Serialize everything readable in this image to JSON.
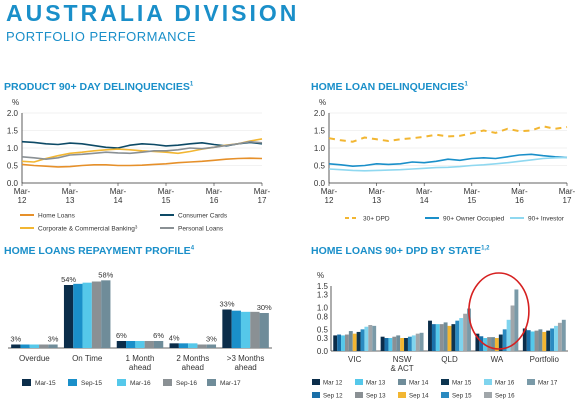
{
  "header": {
    "title": "AUSTRALIA DIVISION",
    "subtitle": "PORTFOLIO PERFORMANCE"
  },
  "colors": {
    "teal_dark": "#0d4a66",
    "dark_navy": "#0b2d4a",
    "light_blue": "#55c8ea",
    "mid_blue": "#4aa0d0",
    "grey": "#8a9094",
    "gold": "#f2b632",
    "orange": "#e6902a",
    "navy2": "#1c5f86",
    "slate": "#6b98ad",
    "grey_blue": "#6f8c99",
    "annotation_red": "#d62020"
  },
  "chart_data": [
    {
      "id": "product_delinquencies",
      "type": "line",
      "title": "PRODUCT 90+ DAY DELINQUENCIES",
      "title_sup": "1",
      "ylabel": "%",
      "ylim": [
        0,
        2.0
      ],
      "yticks": [
        "0.0",
        "0.5",
        "1.0",
        "1.5",
        "2.0"
      ],
      "x_ticks": [
        [
          "Mar-",
          "12"
        ],
        [
          "Mar-",
          "13"
        ],
        [
          "Mar-",
          "14"
        ],
        [
          "Mar-",
          "15"
        ],
        [
          "Mar-",
          "16"
        ],
        [
          "Mar-",
          "17"
        ]
      ],
      "x_range": [
        0,
        20
      ],
      "series": [
        {
          "name": "Home Loans",
          "color": "#e6902a",
          "values": [
            0.53,
            0.5,
            0.48,
            0.46,
            0.47,
            0.5,
            0.52,
            0.52,
            0.5,
            0.5,
            0.51,
            0.53,
            0.55,
            0.58,
            0.6,
            0.62,
            0.65,
            0.68,
            0.7,
            0.71,
            0.7
          ]
        },
        {
          "name": "Consumer Cards",
          "color": "#0d4a66",
          "values": [
            1.18,
            1.16,
            1.12,
            1.1,
            1.14,
            1.12,
            1.07,
            1.02,
            1.0,
            1.08,
            1.12,
            1.1,
            1.06,
            1.08,
            1.12,
            1.15,
            1.1,
            1.06,
            1.12,
            1.16,
            1.12
          ]
        },
        {
          "name": "Corporate & Commercial Banking",
          "name_sup": "3",
          "color": "#f2b632",
          "values": [
            0.62,
            0.6,
            0.7,
            0.78,
            0.85,
            0.88,
            0.92,
            0.95,
            0.97,
            0.95,
            0.92,
            0.9,
            0.88,
            0.85,
            0.9,
            0.97,
            1.02,
            1.08,
            1.12,
            1.2,
            1.26
          ]
        },
        {
          "name": "Personal Loans",
          "color": "#8a9094",
          "values": [
            0.75,
            0.72,
            0.68,
            0.72,
            0.8,
            0.82,
            0.85,
            0.88,
            0.86,
            0.85,
            0.88,
            0.92,
            0.92,
            0.95,
            1.0,
            0.98,
            1.02,
            1.07,
            1.12,
            1.18,
            1.15
          ]
        }
      ]
    },
    {
      "id": "home_loan_delinquencies",
      "type": "line",
      "title": "HOME LOAN DELINQUENCIES",
      "title_sup": "1",
      "ylabel": "%",
      "ylim": [
        0,
        2.0
      ],
      "yticks": [
        "0.0",
        "0.5",
        "1.0",
        "1.5",
        "2.0"
      ],
      "x_ticks": [
        [
          "Mar-",
          "12"
        ],
        [
          "Mar-",
          "13"
        ],
        [
          "Mar-",
          "14"
        ],
        [
          "Mar-",
          "15"
        ],
        [
          "Mar-",
          "16"
        ],
        [
          "Mar-",
          "17"
        ]
      ],
      "x_range": [
        0,
        20
      ],
      "series": [
        {
          "name": "30+ DPD",
          "color": "#f2b632",
          "dashed": true,
          "values": [
            1.28,
            1.22,
            1.18,
            1.3,
            1.25,
            1.2,
            1.25,
            1.28,
            1.32,
            1.38,
            1.33,
            1.35,
            1.42,
            1.5,
            1.43,
            1.55,
            1.48,
            1.5,
            1.62,
            1.55,
            1.6
          ]
        },
        {
          "name": "90+ Owner Occupied",
          "color": "#1a8fc9",
          "values": [
            0.55,
            0.52,
            0.48,
            0.5,
            0.55,
            0.53,
            0.55,
            0.6,
            0.58,
            0.62,
            0.68,
            0.65,
            0.7,
            0.72,
            0.7,
            0.75,
            0.8,
            0.82,
            0.78,
            0.75,
            0.73
          ]
        },
        {
          "name": "90+ Investor",
          "color": "#8fd8f0",
          "values": [
            0.4,
            0.38,
            0.36,
            0.35,
            0.36,
            0.37,
            0.38,
            0.4,
            0.42,
            0.44,
            0.45,
            0.47,
            0.5,
            0.52,
            0.55,
            0.58,
            0.62,
            0.66,
            0.7,
            0.72,
            0.73
          ]
        }
      ]
    },
    {
      "id": "repayment_profile",
      "type": "bar",
      "title": "HOME LOANS REPAYMENT PROFILE",
      "title_sup": "4",
      "categories": [
        [
          "Overdue"
        ],
        [
          "On Time"
        ],
        [
          "1 Month",
          "ahead"
        ],
        [
          "2 Months",
          "ahead"
        ],
        [
          ">3 Months",
          "ahead"
        ]
      ],
      "ylim": [
        0,
        60
      ],
      "series": [
        {
          "name": "Mar-15",
          "color": "#0b2d4a",
          "values": [
            3,
            54,
            6,
            4,
            33
          ]
        },
        {
          "name": "Sep-15",
          "color": "#1a8fc9",
          "values": [
            3,
            55,
            6,
            4,
            32
          ]
        },
        {
          "name": "Mar-16",
          "color": "#55c8ea",
          "values": [
            3,
            56,
            6,
            4,
            31
          ]
        },
        {
          "name": "Sep-16",
          "color": "#8a9094",
          "values": [
            3,
            57,
            6,
            3,
            31
          ]
        },
        {
          "name": "Mar-17",
          "color": "#6f8c99",
          "values": [
            3,
            58,
            6,
            3,
            30
          ]
        }
      ],
      "data_labels": [
        {
          "cat": 0,
          "side": "left",
          "text": "3%"
        },
        {
          "cat": 0,
          "side": "right",
          "text": "3%"
        },
        {
          "cat": 1,
          "side": "left",
          "text": "54%"
        },
        {
          "cat": 1,
          "side": "right",
          "text": "58%"
        },
        {
          "cat": 2,
          "side": "left",
          "text": "6%"
        },
        {
          "cat": 2,
          "side": "right",
          "text": "6%"
        },
        {
          "cat": 3,
          "side": "left",
          "text": "4%"
        },
        {
          "cat": 3,
          "side": "right",
          "text": "3%"
        },
        {
          "cat": 4,
          "side": "left",
          "text": "33%"
        },
        {
          "cat": 4,
          "side": "right",
          "text": "30%"
        }
      ]
    },
    {
      "id": "home_loans_90dpd_state",
      "type": "bar",
      "title": "HOME LOANS 90+ DPD BY STATE",
      "title_sup": "1,2",
      "ylabel": "%",
      "ylim": [
        0,
        1.5
      ],
      "yticks": [
        "0.0",
        "0.3",
        "0.5",
        "0.8",
        "1.0",
        "1.3",
        "1.5"
      ],
      "categories": [
        [
          "VIC"
        ],
        [
          "NSW",
          "& ACT"
        ],
        [
          "QLD"
        ],
        [
          "WA"
        ],
        [
          "Portfolio"
        ]
      ],
      "series": [
        {
          "name": "Mar 12",
          "color": "#0b2d4a",
          "values": [
            0.36,
            0.33,
            0.7,
            0.4,
            0.52
          ]
        },
        {
          "name": "Sep 12",
          "color": "#1a6fa8",
          "values": [
            0.38,
            0.3,
            0.62,
            0.34,
            0.48
          ]
        },
        {
          "name": "Mar 13",
          "color": "#55c8ea",
          "values": [
            0.36,
            0.3,
            0.62,
            0.3,
            0.45
          ]
        },
        {
          "name": "Sep 13",
          "color": "#8a9094",
          "values": [
            0.38,
            0.33,
            0.62,
            0.32,
            0.47
          ]
        },
        {
          "name": "Mar 14",
          "color": "#6f8c99",
          "values": [
            0.46,
            0.36,
            0.66,
            0.32,
            0.5
          ]
        },
        {
          "name": "Sep 14",
          "color": "#f2b632",
          "values": [
            0.4,
            0.3,
            0.58,
            0.3,
            0.44
          ]
        },
        {
          "name": "Mar 15",
          "color": "#0d3550",
          "values": [
            0.44,
            0.3,
            0.62,
            0.38,
            0.47
          ]
        },
        {
          "name": "Sep 15",
          "color": "#2a8ac0",
          "values": [
            0.5,
            0.33,
            0.7,
            0.5,
            0.52
          ]
        },
        {
          "name": "Mar 16",
          "color": "#7fd4ee",
          "values": [
            0.56,
            0.36,
            0.76,
            0.72,
            0.58
          ]
        },
        {
          "name": "Sep 16",
          "color": "#a0a6aa",
          "values": [
            0.6,
            0.4,
            0.86,
            1.05,
            0.65
          ]
        },
        {
          "name": "Mar 17",
          "color": "#7a9aa8",
          "values": [
            0.58,
            0.42,
            0.98,
            1.42,
            0.72
          ]
        }
      ],
      "highlight_category": 3
    }
  ]
}
